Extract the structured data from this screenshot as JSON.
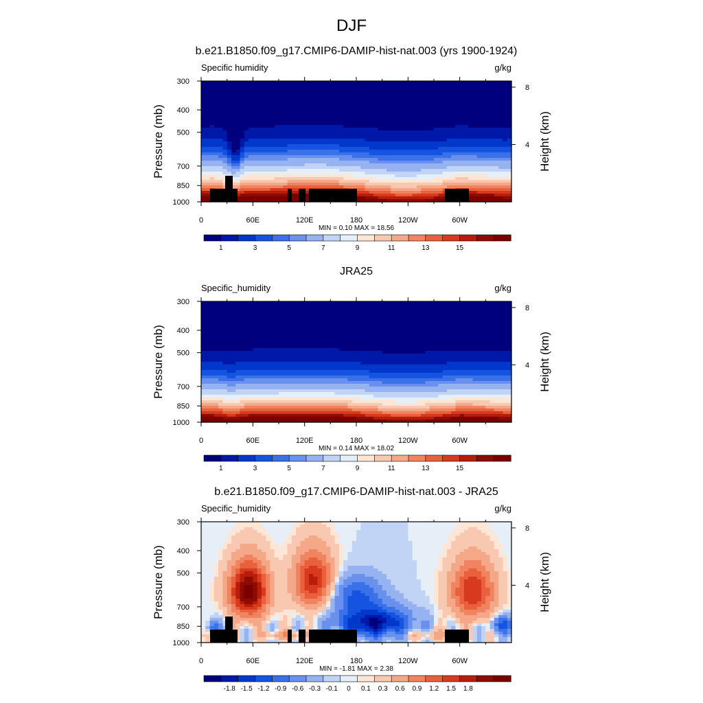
{
  "figure": {
    "title": "DJF"
  },
  "palettes": {
    "absolute": [
      "#00007f",
      "#0018a8",
      "#0038cc",
      "#1454e0",
      "#3a70e8",
      "#6890ec",
      "#96b2f0",
      "#c2d4f6",
      "#e6eef8",
      "#fde6d6",
      "#f9c8b0",
      "#f5a888",
      "#f08460",
      "#e8603c",
      "#d83a1e",
      "#b81c0a",
      "#8c0c04",
      "#7a0000"
    ],
    "difference": [
      "#00007f",
      "#0018a8",
      "#0038cc",
      "#1454e0",
      "#3a70e8",
      "#6890ec",
      "#96b2f0",
      "#c2d4f6",
      "#e6eef8",
      "#fde6d6",
      "#f9c8b0",
      "#f5a888",
      "#f08460",
      "#e8603c",
      "#d83a1e",
      "#b81c0a",
      "#8c0c04",
      "#7a0000"
    ]
  },
  "chart_data": [
    {
      "type": "heatmap",
      "title": "b.e21.B1850.f09_g17.CMIP6-DAMIP-hist-nat.003 (yrs 1900-1924)",
      "left_label": "Specific humidity",
      "right_label": "g/kg",
      "ylabel": "Pressure (mb)",
      "y2label": "Height (km)",
      "x_ticks": [
        "0",
        "60E",
        "120E",
        "180",
        "120W",
        "60W"
      ],
      "x_tick_values": [
        0,
        60,
        120,
        180,
        240,
        300
      ],
      "xlim": [
        0,
        360
      ],
      "y_ticks": [
        "300",
        "400",
        "500",
        "700",
        "850",
        "1000"
      ],
      "y_tick_values": [
        300,
        400,
        500,
        700,
        850,
        1000
      ],
      "ylim": [
        300,
        1000
      ],
      "y_scale": "log",
      "y2_ticks": [
        "8",
        "4"
      ],
      "y2_tick_values": [
        8,
        4
      ],
      "stats": "MIN =   0.10  MAX =  18.56",
      "colorbar_labels": [
        "1",
        "3",
        "5",
        "7",
        "9",
        "11",
        "13",
        "15"
      ],
      "colorbar_levels": [
        0.5,
        1,
        1.5,
        2,
        2.5,
        3,
        4,
        5,
        6,
        7,
        8,
        9,
        10,
        11,
        12,
        13,
        14,
        15
      ],
      "field": "model",
      "topography": true
    },
    {
      "type": "heatmap",
      "title": "JRA25",
      "left_label": "Specific_humidity",
      "right_label": "g/kg",
      "ylabel": "Pressure (mb)",
      "y2label": "Height (km)",
      "x_ticks": [
        "0",
        "60E",
        "120E",
        "180",
        "120W",
        "60W"
      ],
      "x_tick_values": [
        0,
        60,
        120,
        180,
        240,
        300
      ],
      "xlim": [
        0,
        360
      ],
      "y_ticks": [
        "300",
        "400",
        "500",
        "700",
        "850",
        "1000"
      ],
      "y_tick_values": [
        300,
        400,
        500,
        700,
        850,
        1000
      ],
      "ylim": [
        300,
        1000
      ],
      "y_scale": "log",
      "y2_ticks": [
        "8",
        "4"
      ],
      "y2_tick_values": [
        8,
        4
      ],
      "stats": "MIN =   0.14  MAX =  18.02",
      "colorbar_labels": [
        "1",
        "3",
        "5",
        "7",
        "9",
        "11",
        "13",
        "15"
      ],
      "colorbar_levels": [
        0.5,
        1,
        1.5,
        2,
        2.5,
        3,
        4,
        5,
        6,
        7,
        8,
        9,
        10,
        11,
        12,
        13,
        14,
        15
      ],
      "field": "obs",
      "topography": false
    },
    {
      "type": "heatmap",
      "title": "b.e21.B1850.f09_g17.CMIP6-DAMIP-hist-nat.003 - JRA25",
      "left_label": "Specific_humidity",
      "right_label": "g/kg",
      "ylabel": "Pressure (mb)",
      "y2label": "Height (km)",
      "x_ticks": [
        "0",
        "60E",
        "120E",
        "180",
        "120W",
        "60W"
      ],
      "x_tick_values": [
        0,
        60,
        120,
        180,
        240,
        300
      ],
      "xlim": [
        0,
        360
      ],
      "y_ticks": [
        "300",
        "400",
        "500",
        "700",
        "850",
        "1000"
      ],
      "y_tick_values": [
        300,
        400,
        500,
        700,
        850,
        1000
      ],
      "ylim": [
        300,
        1000
      ],
      "y_scale": "log",
      "y2_ticks": [
        "8",
        "4"
      ],
      "y2_tick_values": [
        8,
        4
      ],
      "stats": "MIN =  -1.81  MAX =   2.38",
      "colorbar_labels": [
        "-1.8",
        "-1.5",
        "-1.2",
        "-0.9",
        "-0.6",
        "-0.3",
        "-0.1",
        "0",
        "0.1",
        "0.3",
        "0.6",
        "0.9",
        "1.2",
        "1.5",
        "1.8"
      ],
      "field": "diff",
      "topography": true
    }
  ]
}
